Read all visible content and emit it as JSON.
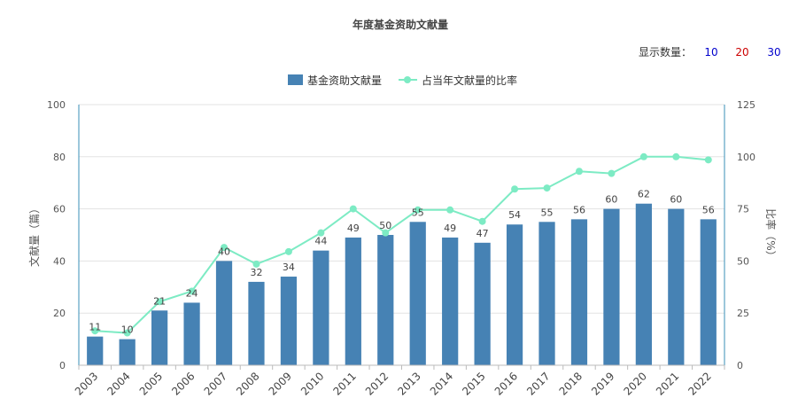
{
  "chart_data": {
    "type": "bar",
    "title": "年度基金资助文献量",
    "categories": [
      "2003",
      "2004",
      "2005",
      "2006",
      "2007",
      "2008",
      "2009",
      "2010",
      "2011",
      "2012",
      "2013",
      "2014",
      "2015",
      "2016",
      "2017",
      "2018",
      "2019",
      "2020",
      "2021",
      "2022"
    ],
    "series": [
      {
        "name": "基金资助文献量",
        "type": "bar",
        "axis": "left",
        "color": "#4682b4",
        "values": [
          11,
          10,
          21,
          24,
          40,
          32,
          34,
          44,
          49,
          50,
          55,
          49,
          47,
          54,
          55,
          56,
          60,
          62,
          60,
          56
        ]
      },
      {
        "name": "占当年文献量的比率",
        "type": "line",
        "axis": "right",
        "color": "#7debc4",
        "values": [
          16.5,
          15.5,
          30.5,
          35.5,
          56.5,
          48.5,
          54.5,
          63.5,
          75,
          63.5,
          74.5,
          74.5,
          69,
          84.5,
          85,
          93,
          92,
          100,
          100,
          98.5
        ]
      }
    ],
    "ylabel": "文献量（篇）",
    "y2label": "比率（%）",
    "ylim": [
      0,
      100
    ],
    "y2lim": [
      0,
      125
    ],
    "yticks": [
      "0",
      "20",
      "40",
      "60",
      "80",
      "100"
    ],
    "y2ticks": [
      "0",
      "25",
      "50",
      "75",
      "100",
      "125"
    ],
    "grid": true,
    "legend_position": "top-center"
  },
  "display_count": {
    "label": "显示数量：",
    "options": [
      {
        "text": "10",
        "color": "#0000cc"
      },
      {
        "text": "20",
        "color": "#cc0000"
      },
      {
        "text": "30",
        "color": "#0000cc"
      }
    ]
  }
}
